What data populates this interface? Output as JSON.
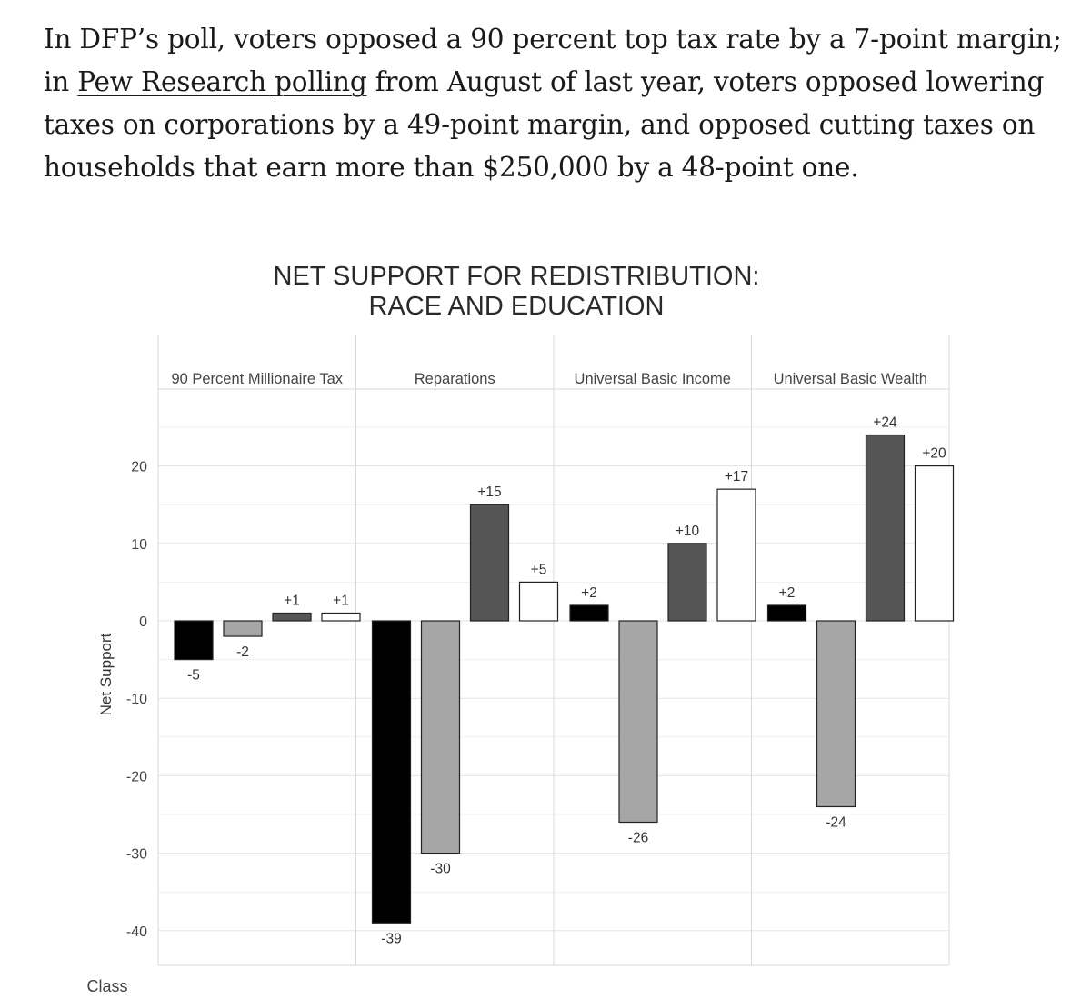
{
  "article": {
    "before_link": "In DFP’s poll, voters opposed a 90 percent top tax rate by a 7-point margin; in ",
    "link_text": "Pew Research polling",
    "after_link": " from August of last year, voters opposed lowering taxes on corporations by a 49-point margin, and opposed cutting taxes on households that earn more than $250,000 by a 48-point one."
  },
  "chart_data": {
    "type": "bar",
    "title_line1": "NET SUPPORT FOR REDISTRIBUTION:",
    "title_line2": "RACE AND EDUCATION",
    "ylabel": "Net Support",
    "xlabel": "Class",
    "ylim": [
      -44,
      30
    ],
    "yticks": [
      20,
      10,
      0,
      -10,
      -20,
      -30,
      -40
    ],
    "grid": true,
    "legend": "none",
    "bar_colors": [
      "#000000",
      "#a6a6a6",
      "#555555",
      "#ffffff"
    ],
    "panels": [
      {
        "label": "90 Percent Millionaire Tax",
        "values": [
          -5,
          -2,
          1,
          1
        ],
        "labels": [
          "-5",
          "-2",
          "+1",
          "+1"
        ]
      },
      {
        "label": "Reparations",
        "values": [
          -39,
          -30,
          15,
          5
        ],
        "labels": [
          "-39",
          "-30",
          "+15",
          "+5"
        ]
      },
      {
        "label": "Universal Basic Income",
        "values": [
          2,
          -26,
          10,
          17
        ],
        "labels": [
          "+2",
          "-26",
          "+10",
          "+17"
        ]
      },
      {
        "label": "Universal Basic Wealth",
        "values": [
          2,
          -24,
          24,
          20
        ],
        "labels": [
          "+2",
          "-24",
          "+24",
          "+20"
        ]
      }
    ]
  }
}
